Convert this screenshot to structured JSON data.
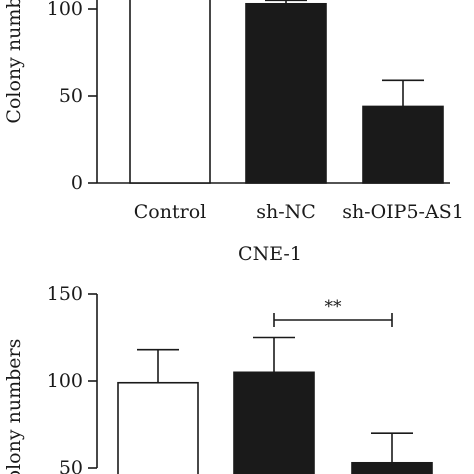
{
  "chart_data": [
    {
      "type": "bar",
      "title": "",
      "xlabel": "",
      "ylabel": "Colony numb",
      "ylim": [
        0,
        110
      ],
      "yticks": [
        "0",
        "50",
        "100"
      ],
      "categories": [
        "Control",
        "sh-NC",
        "sh-OIP5-AS1"
      ],
      "values": [
        110,
        103,
        44
      ],
      "errors": [
        null,
        2,
        15
      ],
      "fills": [
        "#ffffff",
        "#1a1a1a",
        "#1a1a1a"
      ],
      "significance": null
    },
    {
      "type": "bar",
      "title": "CNE-1",
      "xlabel": "",
      "ylabel": "olony numbers",
      "ylim": [
        50,
        150
      ],
      "yticks": [
        "50",
        "100",
        "150"
      ],
      "categories": [
        "Control",
        "sh-NC",
        "sh-OIP5-AS1"
      ],
      "values": [
        99,
        105,
        53
      ],
      "errors": [
        19,
        20,
        17
      ],
      "fills": [
        "#ffffff",
        "#1a1a1a",
        "#1a1a1a"
      ],
      "significance": {
        "from": 1,
        "to": 2,
        "label": "**"
      }
    }
  ]
}
